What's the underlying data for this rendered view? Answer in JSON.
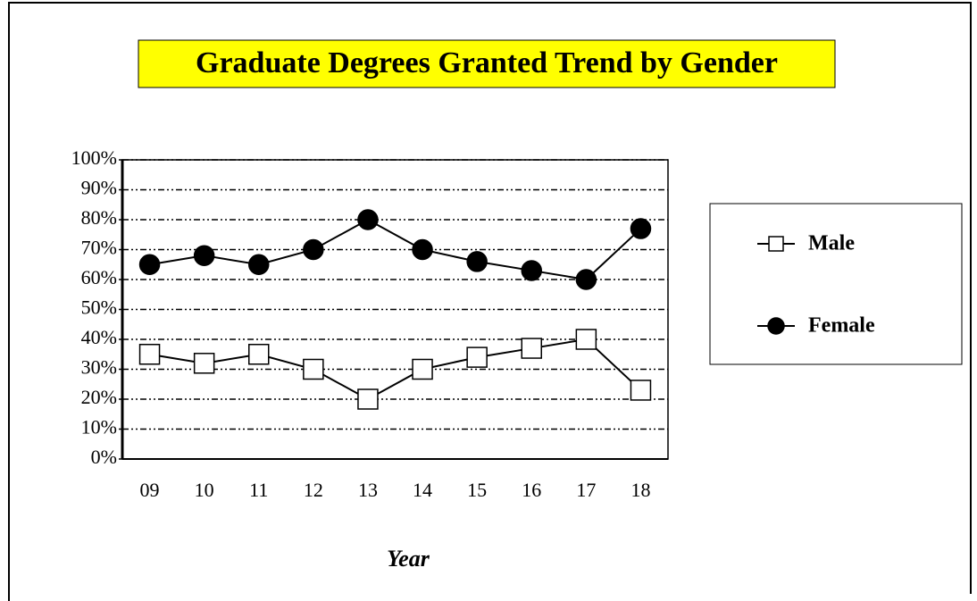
{
  "chart_data": {
    "type": "line",
    "title": "Graduate Degrees Granted Trend by Gender",
    "x_label": "Year",
    "categories": [
      "09",
      "10",
      "11",
      "12",
      "13",
      "14",
      "15",
      "16",
      "17",
      "18"
    ],
    "series": [
      {
        "name": "Male",
        "color": "#000000",
        "marker": "square",
        "marker_fill": "#ffffff",
        "values": [
          35,
          32,
          35,
          30,
          20,
          30,
          34,
          37,
          40,
          23
        ]
      },
      {
        "name": "Female",
        "color": "#000000",
        "marker": "circle",
        "marker_fill": "#000000",
        "values": [
          65,
          68,
          65,
          70,
          80,
          70,
          66,
          63,
          60,
          77
        ]
      }
    ],
    "ylim": [
      0,
      100
    ],
    "yticks": [
      {
        "value": 0,
        "label": "0%"
      },
      {
        "value": 10,
        "label": "10%"
      },
      {
        "value": 20,
        "label": "20%"
      },
      {
        "value": 30,
        "label": "30%"
      },
      {
        "value": 40,
        "label": "40%"
      },
      {
        "value": 50,
        "label": "50%"
      },
      {
        "value": 60,
        "label": "60%"
      },
      {
        "value": 70,
        "label": "70%"
      },
      {
        "value": 80,
        "label": "80%"
      },
      {
        "value": 90,
        "label": "90%"
      },
      {
        "value": 100,
        "label": "100%"
      }
    ],
    "grid": true,
    "legend": "right"
  }
}
